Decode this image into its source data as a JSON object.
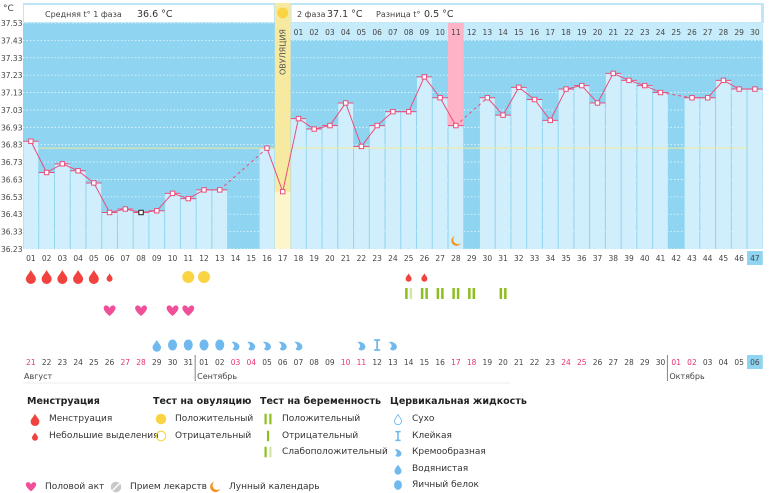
{
  "header": {
    "unit": "°C",
    "phase1_label": "Средняя t° 1 фаза",
    "phase1_value": "36.6 °C",
    "phase2_label": "2 фаза",
    "phase2_value": "37.1 °C",
    "diff_label": "Разница t°",
    "diff_value": "0.5 °C",
    "ovulation_label": "ОВУЛЯЦИЯ"
  },
  "chart_data": {
    "type": "line",
    "ylabel": "°C",
    "ylim": [
      36.23,
      37.53
    ],
    "yticks": [
      "37.53",
      "37.43",
      "37.33",
      "37.23",
      "37.13",
      "37.03",
      "36.93",
      "36.83",
      "36.73",
      "36.63",
      "36.53",
      "36.43",
      "36.33",
      "36.23"
    ],
    "cover_line": 36.81,
    "ovulation_day": 17,
    "highlight_day": 28,
    "today_day": 47,
    "special_marker_day": 8,
    "cycle_days": [
      "01",
      "02",
      "03",
      "04",
      "05",
      "06",
      "07",
      "08",
      "09",
      "10",
      "11",
      "12",
      "13",
      "14",
      "15",
      "16",
      "17",
      "18",
      "19",
      "20",
      "21",
      "22",
      "23",
      "24",
      "25",
      "26",
      "27",
      "28",
      "29",
      "30",
      "31",
      "32",
      "33",
      "34",
      "35",
      "36",
      "37",
      "38",
      "39",
      "40",
      "41",
      "42",
      "43",
      "44",
      "45",
      "46",
      "47"
    ],
    "phase2_days": [
      "01",
      "02",
      "03",
      "04",
      "05",
      "06",
      "07",
      "08",
      "09",
      "10",
      "11",
      "12",
      "13",
      "14",
      "15",
      "16",
      "17",
      "18",
      "19",
      "20",
      "21",
      "22",
      "23",
      "24",
      "25",
      "26",
      "27",
      "28",
      "29",
      "30"
    ],
    "temperatures": [
      36.85,
      36.67,
      36.72,
      36.68,
      36.61,
      36.44,
      36.46,
      36.44,
      36.45,
      36.55,
      36.52,
      36.57,
      36.57,
      null,
      null,
      36.81,
      36.56,
      36.98,
      36.92,
      36.94,
      37.07,
      36.82,
      36.94,
      37.02,
      37.02,
      37.22,
      37.1,
      36.94,
      null,
      37.1,
      37.0,
      37.16,
      37.09,
      36.97,
      37.15,
      37.17,
      37.07,
      37.24,
      37.2,
      37.17,
      37.13,
      null,
      37.1,
      37.1,
      37.2,
      37.15,
      37.15
    ],
    "dates": [
      "21",
      "22",
      "23",
      "24",
      "25",
      "26",
      "27",
      "28",
      "29",
      "30",
      "31",
      "01",
      "02",
      "03",
      "04",
      "05",
      "06",
      "07",
      "08",
      "09",
      "10",
      "11",
      "12",
      "13",
      "14",
      "15",
      "16",
      "17",
      "18",
      "19",
      "20",
      "21",
      "22",
      "23",
      "24",
      "25",
      "26",
      "27",
      "28",
      "29",
      "30",
      "01",
      "02",
      "03",
      "04",
      "05",
      "06"
    ],
    "weekend_days": [
      1,
      7,
      8,
      14,
      15,
      21,
      22,
      28,
      29,
      35,
      36,
      42,
      43
    ],
    "months": [
      {
        "label": "Август",
        "start_day": 1
      },
      {
        "label": "Сентябрь",
        "start_day": 12
      },
      {
        "label": "Октябрь",
        "start_day": 42
      }
    ],
    "events": {
      "menstruation": [
        1,
        2,
        3,
        4,
        5
      ],
      "spotting": [
        6,
        25,
        26
      ],
      "ovulation_test_positive": [
        11,
        12
      ],
      "pregnancy_test_positive": [
        26,
        27,
        28,
        29,
        31
      ],
      "pregnancy_test_weak": [
        25
      ],
      "intercourse": [
        6,
        8,
        10,
        11
      ],
      "cervical_watery": [
        9
      ],
      "cervical_eggwhite": [
        10,
        11,
        12,
        13
      ],
      "cervical_creamy": [
        14,
        15,
        16,
        17,
        18,
        22,
        24
      ],
      "cervical_sticky": [
        23
      ],
      "moon": [
        28
      ]
    },
    "colors": {
      "line": "#e8507e",
      "bar": "#d0eefb",
      "background": "#8fd5f1",
      "ovulation": "#f7e9a0",
      "highlight": "#ffb3c6",
      "cover_line": "#f2ea9a",
      "blood": "#f0433f",
      "heart": "#f0509a",
      "ovulation_test": "#fbd444",
      "pregnancy_test": "#8cbf1e",
      "cervical": "#6fb9ee",
      "moon": "#f5931f",
      "weekend": "#e8336a"
    }
  },
  "legend": {
    "menstruation": {
      "title": "Менструация",
      "items": [
        "Менструация",
        "Небольшие выделения"
      ]
    },
    "ovulation_test": {
      "title": "Тест на овуляцию",
      "items": [
        "Положительный",
        "Отрицательный"
      ]
    },
    "pregnancy_test": {
      "title": "Тест на беременность",
      "items": [
        "Положительный",
        "Отрицательный",
        "Слабоположительный"
      ]
    },
    "cervical": {
      "title": "Цервикальная жидкость",
      "items": [
        "Сухо",
        "Клейкая",
        "Кремообразная",
        "Водянистая",
        "Яичный белок"
      ]
    },
    "bottom": [
      "Половой акт",
      "Прием лекарств",
      "Лунный календарь"
    ]
  }
}
